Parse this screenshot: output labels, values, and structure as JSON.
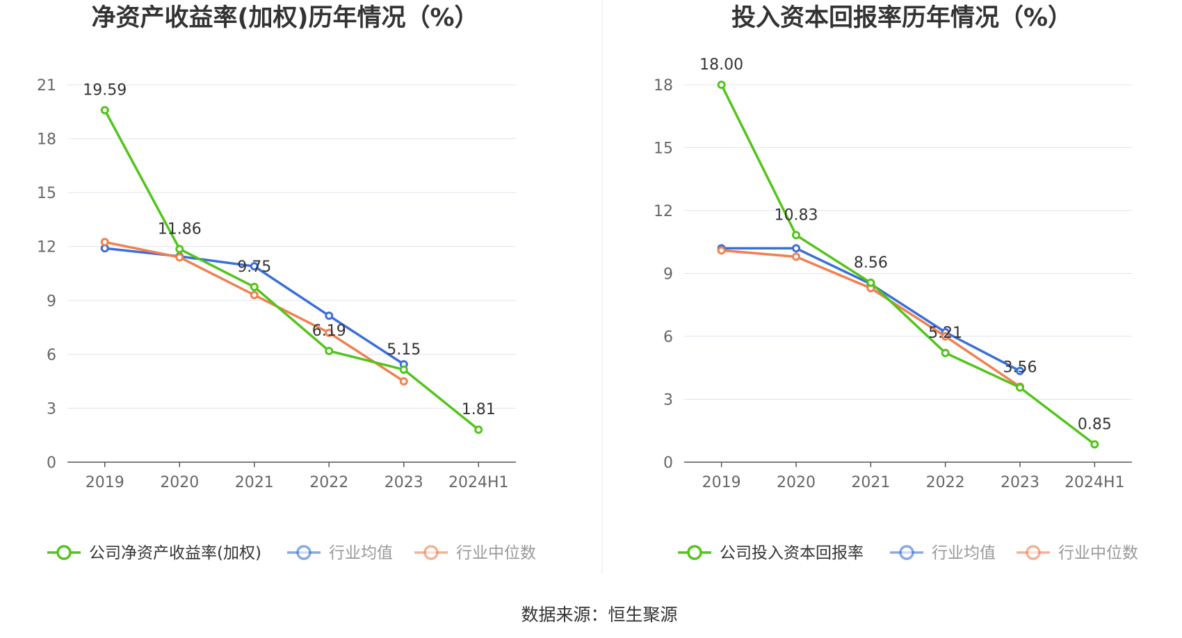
{
  "source_note": "数据来源：恒生聚源",
  "chart_data": [
    {
      "type": "line",
      "title": "净资产收益率(加权)历年情况（%）",
      "categories": [
        "2019",
        "2020",
        "2021",
        "2022",
        "2023",
        "2024H1"
      ],
      "ylim": [
        0,
        21
      ],
      "yticks": [
        0,
        3,
        6,
        9,
        12,
        15,
        18,
        21
      ],
      "grid": true,
      "legend_position": "bottom",
      "series": [
        {
          "name": "公司净资产收益率(加权)",
          "color": "#52c41a",
          "labeled": true,
          "values": [
            19.59,
            11.86,
            9.75,
            6.19,
            5.15,
            1.81
          ],
          "labels": [
            "19.59",
            "11.86",
            "9.75",
            "6.19",
            "5.15",
            "1.81"
          ]
        },
        {
          "name": "行业均值",
          "color": "#3a6fd8",
          "labeled": false,
          "values": [
            11.9,
            11.45,
            10.9,
            8.15,
            5.45,
            null
          ]
        },
        {
          "name": "行业中位数",
          "color": "#f08050",
          "labeled": false,
          "values": [
            12.25,
            11.4,
            9.3,
            7.2,
            4.5,
            null
          ]
        }
      ]
    },
    {
      "type": "line",
      "title": "投入资本回报率历年情况（%）",
      "categories": [
        "2019",
        "2020",
        "2021",
        "2022",
        "2023",
        "2024H1"
      ],
      "ylim": [
        0,
        18
      ],
      "yticks": [
        0,
        3,
        6,
        9,
        12,
        15,
        18
      ],
      "grid": true,
      "legend_position": "bottom",
      "series": [
        {
          "name": "公司投入资本回报率",
          "color": "#52c41a",
          "labeled": true,
          "values": [
            18.0,
            10.83,
            8.56,
            5.21,
            3.56,
            0.85
          ],
          "labels": [
            "18.00",
            "10.83",
            "8.56",
            "5.21",
            "3.56",
            "0.85"
          ]
        },
        {
          "name": "行业均值",
          "color": "#3a6fd8",
          "labeled": false,
          "values": [
            10.2,
            10.2,
            8.5,
            6.2,
            4.35,
            null
          ]
        },
        {
          "name": "行业中位数",
          "color": "#f08050",
          "labeled": false,
          "values": [
            10.1,
            9.8,
            8.3,
            6.0,
            3.6,
            null
          ]
        }
      ]
    }
  ]
}
